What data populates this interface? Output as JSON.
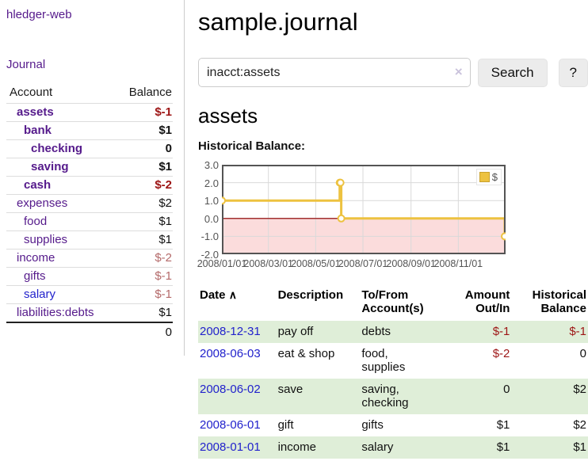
{
  "app": {
    "title": "hledger-web"
  },
  "sidebar": {
    "journal_link": "Journal",
    "table": {
      "headers": {
        "account": "Account",
        "balance": "Balance"
      },
      "rows": [
        {
          "name": "assets",
          "balance": "$-1",
          "level": 1,
          "bold": true,
          "neg": "strong",
          "link": "purple"
        },
        {
          "name": "bank",
          "balance": "$1",
          "level": 2,
          "bold": true,
          "neg": "none",
          "link": "purple"
        },
        {
          "name": "checking",
          "balance": "0",
          "level": 3,
          "bold": true,
          "neg": "none",
          "link": "purple"
        },
        {
          "name": "saving",
          "balance": "$1",
          "level": 3,
          "bold": true,
          "neg": "none",
          "link": "purple"
        },
        {
          "name": "cash",
          "balance": "$-2",
          "level": 2,
          "bold": true,
          "neg": "strong",
          "link": "purple"
        },
        {
          "name": "expenses",
          "balance": "$2",
          "level": 1,
          "bold": false,
          "neg": "none",
          "link": "purple"
        },
        {
          "name": "food",
          "balance": "$1",
          "level": 2,
          "bold": false,
          "neg": "none",
          "link": "purple"
        },
        {
          "name": "supplies",
          "balance": "$1",
          "level": 2,
          "bold": false,
          "neg": "none",
          "link": "purple"
        },
        {
          "name": "income",
          "balance": "$-2",
          "level": 1,
          "bold": false,
          "neg": "muted",
          "link": "purple"
        },
        {
          "name": "gifts",
          "balance": "$-1",
          "level": 2,
          "bold": false,
          "neg": "muted",
          "link": "purple"
        },
        {
          "name": "salary",
          "balance": "$-1",
          "level": 2,
          "bold": false,
          "neg": "muted",
          "link": "blue"
        },
        {
          "name": "liabilities:debts",
          "balance": "$1",
          "level": 1,
          "bold": false,
          "neg": "none",
          "link": "purple"
        }
      ],
      "total": "0"
    }
  },
  "header": {
    "title": "sample.journal"
  },
  "search": {
    "value": "inacct:assets",
    "clear_icon": "×",
    "button": "Search",
    "help_button": "?"
  },
  "account_page": {
    "heading": "assets",
    "chart_label": "Historical Balance:"
  },
  "chart_data": {
    "type": "line",
    "title": "Historical Balance",
    "step": true,
    "series": [
      {
        "name": "$",
        "color": "#edc240",
        "points": [
          [
            "2008-01-01",
            1
          ],
          [
            "2008-06-01",
            2
          ],
          [
            "2008-06-02",
            2
          ],
          [
            "2008-06-03",
            0
          ],
          [
            "2008-12-31",
            -1
          ]
        ]
      }
    ],
    "xlim": [
      "2008-01-01",
      "2009-01-01"
    ],
    "ylim": [
      -2,
      3
    ],
    "xticks": [
      {
        "pos": "2008-01-01",
        "label": "2008/01/01"
      },
      {
        "pos": "2008-03-01",
        "label": "2008/03/01"
      },
      {
        "pos": "2008-05-01",
        "label": "2008/05/01"
      },
      {
        "pos": "2008-07-01",
        "label": "2008/07/01"
      },
      {
        "pos": "2008-09-01",
        "label": "2008/09/01"
      },
      {
        "pos": "2008-11-01",
        "label": "2008/11/01"
      }
    ],
    "yticks": [
      {
        "v": 3,
        "label": "3.0"
      },
      {
        "v": 2,
        "label": "2.0"
      },
      {
        "v": 1,
        "label": "1.0"
      },
      {
        "v": 0,
        "label": "0.0"
      },
      {
        "v": -1,
        "label": "-1.0"
      },
      {
        "v": -2,
        "label": "-2.0"
      }
    ],
    "grid": true,
    "legend_position": "top-right",
    "negative_region_color": "#fbdcdc",
    "zero_line_color": "#a12f2f",
    "grid_color": "#d9d9d9",
    "border_color": "#545454"
  },
  "register": {
    "headers": {
      "date": "Date",
      "sort_icon": "∧",
      "description": "Description",
      "accounts": "To/From Account(s)",
      "amount": "Amount Out/In",
      "balance": "Historical Balance"
    },
    "rows": [
      {
        "date": "2008-12-31",
        "description": "pay off",
        "accounts": "debts",
        "amount": "$-1",
        "amount_neg": true,
        "balance": "$-1",
        "balance_neg": true
      },
      {
        "date": "2008-06-03",
        "description": "eat & shop",
        "accounts": "food, supplies",
        "amount": "$-2",
        "amount_neg": true,
        "balance": "0",
        "balance_neg": false
      },
      {
        "date": "2008-06-02",
        "description": "save",
        "accounts": "saving, checking",
        "amount": "0",
        "amount_neg": false,
        "balance": "$2",
        "balance_neg": false
      },
      {
        "date": "2008-06-01",
        "description": "gift",
        "accounts": "gifts",
        "amount": "$1",
        "amount_neg": false,
        "balance": "$2",
        "balance_neg": false
      },
      {
        "date": "2008-01-01",
        "description": "income",
        "accounts": "salary",
        "amount": "$1",
        "amount_neg": false,
        "balance": "$1",
        "balance_neg": false
      }
    ]
  },
  "colors": {
    "link_purple": "#551a8b",
    "link_blue": "#2222cc",
    "negative_strong": "#9d1515",
    "negative_muted": "#b46a6a",
    "row_green": "#dfeed8",
    "chart_gold": "#edc240",
    "chart_negative_fill": "#fbdcdc",
    "zero_line": "#a12f2f"
  }
}
